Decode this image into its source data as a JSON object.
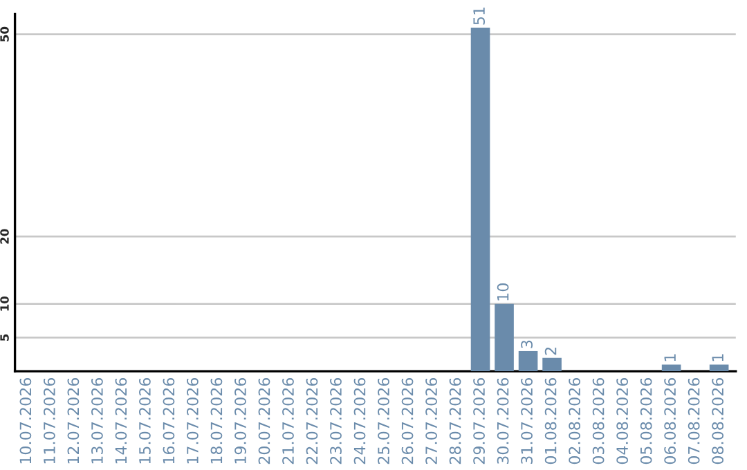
{
  "chart_data": {
    "type": "bar",
    "categories": [
      "10.07.2026",
      "11.07.2026",
      "12.07.2026",
      "13.07.2026",
      "14.07.2026",
      "15.07.2026",
      "16.07.2026",
      "17.07.2026",
      "18.07.2026",
      "19.07.2026",
      "20.07.2026",
      "21.07.2026",
      "22.07.2026",
      "23.07.2026",
      "24.07.2026",
      "25.07.2026",
      "26.07.2026",
      "27.07.2026",
      "28.07.2026",
      "29.07.2026",
      "30.07.2026",
      "31.07.2026",
      "01.08.2026",
      "02.08.2026",
      "03.08.2026",
      "04.08.2026",
      "05.08.2026",
      "06.08.2026",
      "07.08.2026",
      "08.08.2026"
    ],
    "values": [
      0,
      0,
      0,
      0,
      0,
      0,
      0,
      0,
      0,
      0,
      0,
      0,
      0,
      0,
      0,
      0,
      0,
      0,
      0,
      51,
      10,
      3,
      2,
      0,
      0,
      0,
      0,
      1,
      0,
      1
    ],
    "value_labels": [
      null,
      null,
      null,
      null,
      null,
      null,
      null,
      null,
      null,
      null,
      null,
      null,
      null,
      null,
      null,
      null,
      null,
      null,
      null,
      "51",
      "10",
      "3",
      "2",
      null,
      null,
      null,
      null,
      "1",
      null,
      "1"
    ],
    "color": "#6a8bab",
    "ylim": [
      0,
      53
    ],
    "yticks": [
      5,
      10,
      20,
      50
    ],
    "grid": "y"
  }
}
